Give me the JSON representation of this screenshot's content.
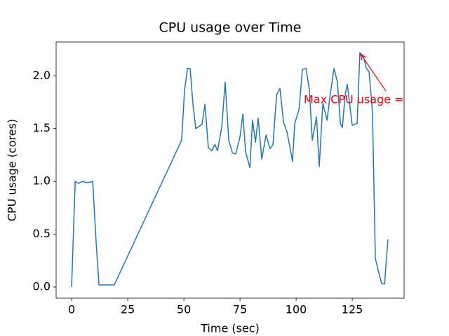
{
  "chart_data": {
    "type": "line",
    "title": "CPU usage over Time",
    "x_label": "Time (sec)",
    "y_label": "CPU usage (cores)",
    "x": [
      0,
      1.6,
      3.1,
      4.7,
      6.3,
      7.8,
      9.4,
      10.9,
      12.2,
      14,
      19,
      49,
      50.3,
      51.6,
      52.8,
      54.1,
      55.3,
      58.1,
      59.4,
      60.9,
      62.5,
      63.8,
      65,
      66.9,
      68.4,
      70,
      71.6,
      73.1,
      75,
      76.3,
      77.5,
      79.4,
      80.6,
      81.9,
      83.1,
      84.7,
      86.6,
      88.4,
      89.7,
      91.3,
      92.8,
      94.4,
      95.9,
      97.2,
      98.4,
      99.4,
      101.3,
      102.8,
      104.4,
      105.9,
      107.2,
      109.1,
      110.3,
      111.9,
      113.8,
      115.3,
      116.9,
      118.4,
      119.7,
      120.6,
      121.9,
      122.8,
      125,
      127.2,
      128.4,
      130,
      131.3,
      132.5,
      134,
      135.3,
      136.9,
      138.1,
      139.4,
      140.9
    ],
    "values": [
      0,
      1.0,
      0.98,
      1.0,
      0.99,
      0.99,
      1.0,
      0.43,
      0.02,
      0.02,
      0.02,
      1.39,
      1.86,
      2.07,
      2.07,
      1.72,
      1.5,
      1.54,
      1.73,
      1.32,
      1.29,
      1.35,
      1.29,
      1.52,
      1.94,
      1.39,
      1.27,
      1.26,
      1.42,
      1.64,
      1.28,
      1.13,
      1.58,
      1.37,
      1.6,
      1.21,
      1.44,
      1.31,
      1.35,
      1.82,
      1.88,
      1.56,
      1.47,
      1.33,
      1.19,
      1.55,
      1.68,
      2.06,
      2.07,
      1.87,
      1.39,
      1.61,
      1.14,
      1.74,
      1.58,
      1.84,
      2.07,
      1.94,
      1.55,
      1.51,
      1.83,
      1.92,
      1.53,
      1.55,
      2.22,
      2.18,
      2.07,
      2.04,
      1.66,
      0.27,
      0.13,
      0.03,
      0.03,
      0.45
    ],
    "color": "#1f77b4",
    "xlim": [
      -6.9,
      148.1
    ],
    "ylim": [
      -0.106,
      2.32
    ],
    "xticks": [
      0,
      25,
      50,
      75,
      100,
      125
    ],
    "yticks": [
      {
        "value": 0,
        "label": "0.0"
      },
      {
        "value": 0.5,
        "label": "0.5"
      },
      {
        "value": 1,
        "label": "1.0"
      },
      {
        "value": 1.5,
        "label": "1.5"
      },
      {
        "value": 2,
        "label": "2.0"
      }
    ],
    "annotation": {
      "text": "Max CPU usage = ",
      "color": "#ff0000"
    }
  }
}
